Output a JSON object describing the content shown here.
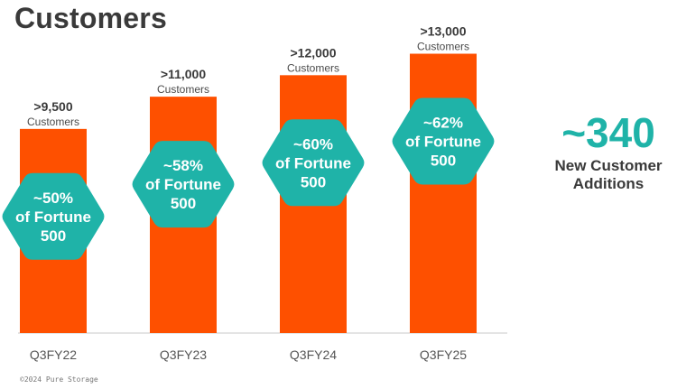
{
  "title": "Customers",
  "colors": {
    "bar": "#fe5000",
    "hexagon": "#1fb3a8",
    "text_dark": "#3a3a3a",
    "axis_label": "#555555"
  },
  "chart_data": {
    "type": "bar",
    "categories": [
      "Q3FY22",
      "Q3FY23",
      "Q3FY24",
      "Q3FY25"
    ],
    "values": [
      9500,
      11000,
      12000,
      13000
    ],
    "value_labels": [
      ">9,500",
      ">11,000",
      ">12,000",
      ">13,000"
    ],
    "value_sublabel": "Customers",
    "badges": [
      [
        "~50%",
        "of Fortune",
        "500"
      ],
      [
        "~58%",
        "of Fortune",
        "500"
      ],
      [
        "~60%",
        "of Fortune",
        "500"
      ],
      [
        "~62%",
        "of Fortune",
        "500"
      ]
    ],
    "ylim": [
      0,
      13400
    ],
    "grid": false,
    "legend": "none"
  },
  "callout": {
    "value": "~340",
    "label_line1": "New Customer",
    "label_line2": "Additions"
  },
  "footer": {
    "copyright": "©2024 Pure Storage"
  }
}
